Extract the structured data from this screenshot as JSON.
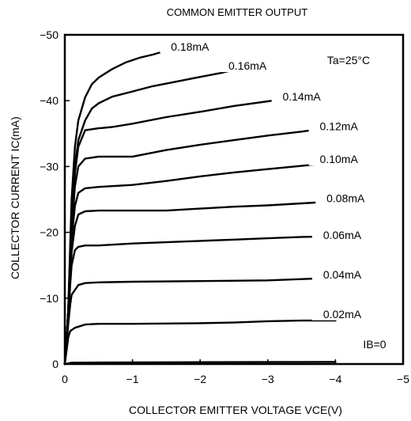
{
  "chart_data": {
    "type": "line",
    "title": "COMMON EMITTER OUTPUT",
    "xlabel": "COLLECTOR EMITTER VOLTAGE VCE(V)",
    "ylabel": "COLLECTOR CURRENT IC(mA)",
    "xlim": [
      0,
      -5
    ],
    "ylim": [
      0,
      -50
    ],
    "x_ticks": [
      "0",
      "−1",
      "−2",
      "−3",
      "−4",
      "−5"
    ],
    "x_tick_values": [
      0,
      -1,
      -2,
      -3,
      -4,
      -5
    ],
    "y_ticks": [
      "0",
      "−10",
      "−20",
      "−30",
      "−40",
      "−50"
    ],
    "y_tick_values": [
      0,
      -10,
      -20,
      -30,
      -40,
      -50
    ],
    "grid": false,
    "annotations": [
      "Ta=25°C",
      "IB=0"
    ],
    "series": [
      {
        "name": "0.18mA",
        "label_at": [
          -1.85,
          -48.2
        ],
        "points": [
          [
            0,
            0
          ],
          [
            -0.05,
            -8
          ],
          [
            -0.08,
            -18
          ],
          [
            -0.1,
            -25
          ],
          [
            -0.15,
            -33
          ],
          [
            -0.2,
            -37
          ],
          [
            -0.3,
            -40.5
          ],
          [
            -0.4,
            -42.5
          ],
          [
            -0.5,
            -43.5
          ],
          [
            -0.7,
            -44.8
          ],
          [
            -0.9,
            -45.8
          ],
          [
            -1.1,
            -46.5
          ],
          [
            -1.3,
            -47
          ],
          [
            -1.5,
            -47.6
          ],
          [
            -1.8,
            -48.3
          ]
        ]
      },
      {
        "name": "0.16mA",
        "label_at": [
          -2.7,
          -45.3
        ],
        "points": [
          [
            0,
            0
          ],
          [
            -0.05,
            -8
          ],
          [
            -0.08,
            -17
          ],
          [
            -0.1,
            -23
          ],
          [
            -0.15,
            -30
          ],
          [
            -0.2,
            -34
          ],
          [
            -0.3,
            -37
          ],
          [
            -0.4,
            -38.8
          ],
          [
            -0.5,
            -39.6
          ],
          [
            -0.7,
            -40.6
          ],
          [
            -1,
            -41.4
          ],
          [
            -1.3,
            -42.2
          ],
          [
            -1.6,
            -42.8
          ],
          [
            -2,
            -43.6
          ],
          [
            -2.3,
            -44.2
          ],
          [
            -2.6,
            -44.9
          ]
        ]
      },
      {
        "name": "0.14mA",
        "label_at": [
          -3.5,
          -40.6
        ],
        "points": [
          [
            0,
            0
          ],
          [
            -0.05,
            -8
          ],
          [
            -0.08,
            -16
          ],
          [
            -0.1,
            -21
          ],
          [
            -0.15,
            -29
          ],
          [
            -0.2,
            -33
          ],
          [
            -0.3,
            -35.5
          ],
          [
            -0.5,
            -35.8
          ],
          [
            -0.7,
            -36
          ],
          [
            -1,
            -36.5
          ],
          [
            -1.5,
            -37.5
          ],
          [
            -2,
            -38.3
          ],
          [
            -2.5,
            -39.2
          ],
          [
            -3,
            -39.9
          ],
          [
            -3.4,
            -40.4
          ]
        ]
      },
      {
        "name": "0.12mA",
        "label_at": [
          -4.05,
          -36.1
        ],
        "points": [
          [
            0,
            0
          ],
          [
            -0.05,
            -8
          ],
          [
            -0.08,
            -15
          ],
          [
            -0.1,
            -20
          ],
          [
            -0.15,
            -27
          ],
          [
            -0.2,
            -30
          ],
          [
            -0.3,
            -31.2
          ],
          [
            -0.5,
            -31.5
          ],
          [
            -1,
            -31.5
          ],
          [
            -1.5,
            -32.5
          ],
          [
            -2,
            -33.3
          ],
          [
            -2.5,
            -34
          ],
          [
            -3,
            -34.7
          ],
          [
            -3.5,
            -35.3
          ],
          [
            -4,
            -36
          ]
        ]
      },
      {
        "name": "0.10mA",
        "label_at": [
          -4.05,
          -31.1
        ],
        "points": [
          [
            0,
            0
          ],
          [
            -0.05,
            -8
          ],
          [
            -0.08,
            -14
          ],
          [
            -0.1,
            -19
          ],
          [
            -0.15,
            -24
          ],
          [
            -0.2,
            -26
          ],
          [
            -0.3,
            -26.7
          ],
          [
            -0.5,
            -26.9
          ],
          [
            -1,
            -27.2
          ],
          [
            -1.5,
            -27.8
          ],
          [
            -2,
            -28.5
          ],
          [
            -2.5,
            -29.1
          ],
          [
            -3,
            -29.6
          ],
          [
            -3.5,
            -30.1
          ],
          [
            -4,
            -30.6
          ]
        ]
      },
      {
        "name": "0.08mA",
        "label_at": [
          -4.15,
          -25.2
        ],
        "points": [
          [
            0,
            0
          ],
          [
            -0.05,
            -7
          ],
          [
            -0.08,
            -13
          ],
          [
            -0.1,
            -17
          ],
          [
            -0.15,
            -21
          ],
          [
            -0.2,
            -22.7
          ],
          [
            -0.3,
            -23.2
          ],
          [
            -0.5,
            -23.3
          ],
          [
            -1,
            -23.3
          ],
          [
            -1.5,
            -23.3
          ],
          [
            -2,
            -23.6
          ],
          [
            -2.5,
            -23.9
          ],
          [
            -3,
            -24.1
          ],
          [
            -3.5,
            -24.4
          ],
          [
            -4,
            -24.7
          ]
        ]
      },
      {
        "name": "0.06mA",
        "label_at": [
          -4.1,
          -19.6
        ],
        "points": [
          [
            0,
            0
          ],
          [
            -0.05,
            -7
          ],
          [
            -0.08,
            -12
          ],
          [
            -0.1,
            -15
          ],
          [
            -0.15,
            -17.3
          ],
          [
            -0.2,
            -17.8
          ],
          [
            -0.3,
            -18
          ],
          [
            -0.5,
            -18
          ],
          [
            -1,
            -18.3
          ],
          [
            -1.5,
            -18.5
          ],
          [
            -2,
            -18.7
          ],
          [
            -2.5,
            -18.9
          ],
          [
            -3,
            -19.1
          ],
          [
            -3.5,
            -19.3
          ],
          [
            -4,
            -19.4
          ]
        ]
      },
      {
        "name": "0.04mA",
        "label_at": [
          -4.1,
          -13.6
        ],
        "points": [
          [
            0,
            0
          ],
          [
            -0.05,
            -6
          ],
          [
            -0.08,
            -9
          ],
          [
            -0.1,
            -10.5
          ],
          [
            -0.2,
            -12
          ],
          [
            -0.3,
            -12.3
          ],
          [
            -0.5,
            -12.4
          ],
          [
            -1,
            -12.5
          ],
          [
            -2,
            -12.6
          ],
          [
            -3,
            -12.7
          ],
          [
            -3.5,
            -12.9
          ],
          [
            -4,
            -13.1
          ]
        ]
      },
      {
        "name": "0.02mA",
        "label_at": [
          -4.1,
          -7.6
        ],
        "points": [
          [
            0,
            0
          ],
          [
            -0.05,
            -4
          ],
          [
            -0.08,
            -5
          ],
          [
            -0.15,
            -5.5
          ],
          [
            -0.3,
            -6
          ],
          [
            -0.5,
            -6.1
          ],
          [
            -1,
            -6.1
          ],
          [
            -2,
            -6.2
          ],
          [
            -2.5,
            -6.3
          ],
          [
            -3,
            -6.5
          ],
          [
            -3.5,
            -6.6
          ],
          [
            -4,
            -6.6
          ]
        ]
      },
      {
        "name": "",
        "points": [
          [
            0,
            0
          ],
          [
            -0.1,
            -0.2
          ],
          [
            -1,
            -0.25
          ],
          [
            -2,
            -0.28
          ],
          [
            -3,
            -0.3
          ],
          [
            -4,
            -0.33
          ]
        ]
      }
    ]
  }
}
